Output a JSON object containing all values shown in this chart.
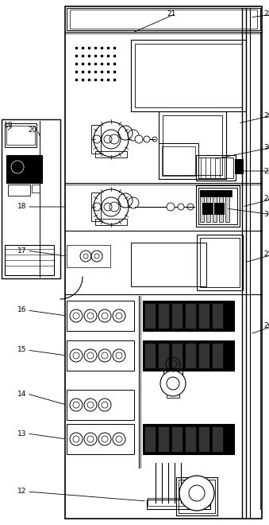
{
  "bg_color": "#ffffff",
  "line_color": "#000000",
  "figsize": [
    3.39,
    6.6
  ],
  "dpi": 100
}
